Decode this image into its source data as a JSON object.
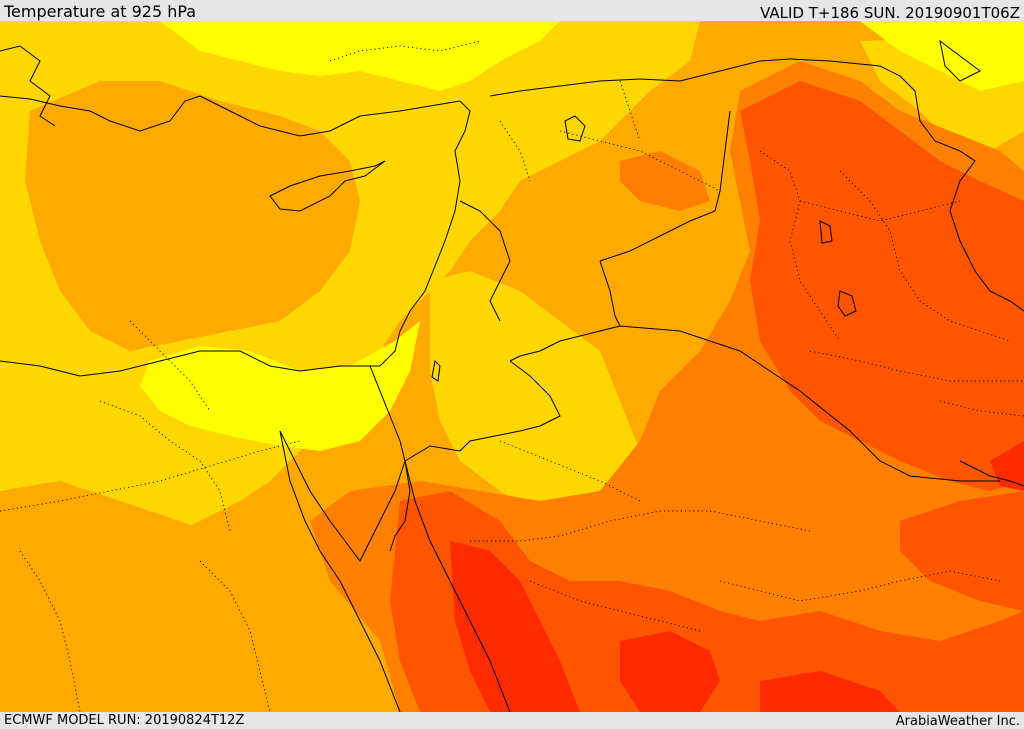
{
  "header": {
    "title": "Temperature at 925 hPa",
    "valid": "VALID T+186 SUN. 20190901T06Z"
  },
  "footer": {
    "model_run": "ECMWF MODEL RUN: 20190824T12Z",
    "credit": "ArabiaWeather Inc."
  },
  "map": {
    "field": "temperature-925hpa",
    "palette": {
      "coolest": "#ffff00",
      "cool": "#ffd700",
      "mild": "#ffaa00",
      "warm": "#ff8000",
      "hot": "#ff5500",
      "hottest": "#ff2a00"
    },
    "borders": "#000000"
  }
}
